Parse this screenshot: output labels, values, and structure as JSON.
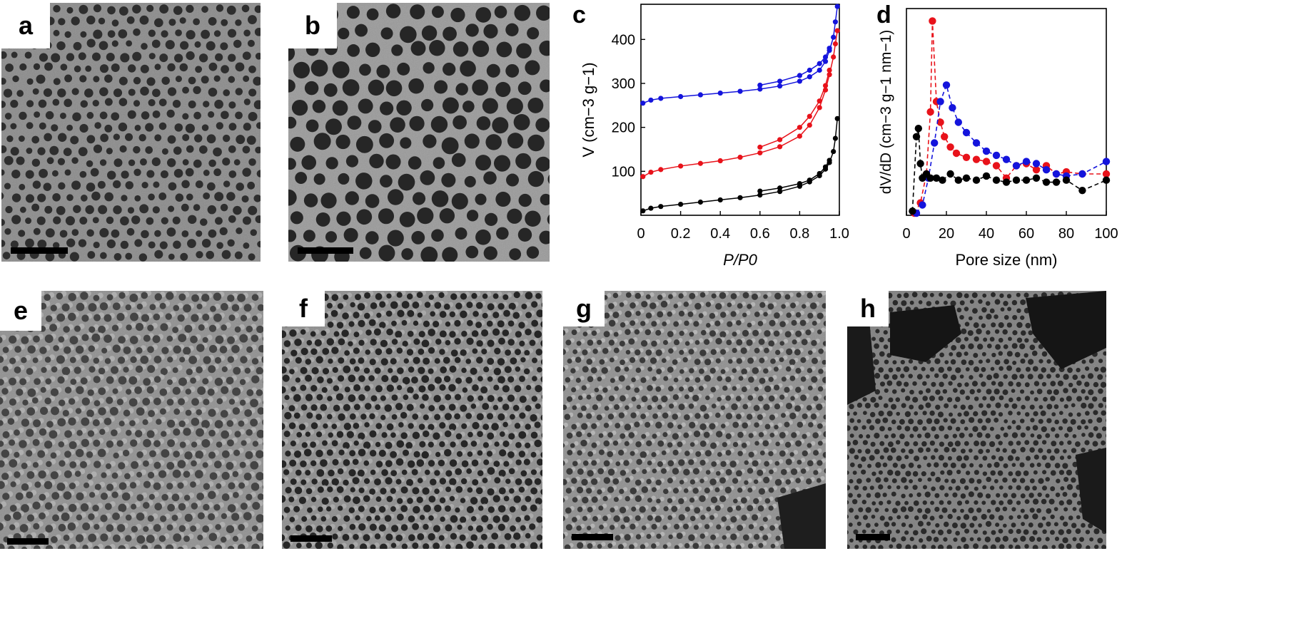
{
  "panels": {
    "a": {
      "label": "a"
    },
    "b": {
      "label": "b"
    },
    "c": {
      "label": "c"
    },
    "d": {
      "label": "d"
    },
    "e": {
      "label": "e"
    },
    "f": {
      "label": "f"
    },
    "g": {
      "label": "g"
    },
    "h": {
      "label": "h"
    }
  },
  "colors": {
    "black": "#000000",
    "red": "#e8121a",
    "blue": "#1414dc"
  },
  "chart_data": [
    {
      "panel": "c",
      "type": "scatter",
      "xlabel": "P/P0",
      "ylabel": "V (cm−3 g−1)",
      "xlim": [
        0,
        1.0
      ],
      "ylim": [
        0,
        480
      ],
      "xticks": [
        "0",
        "0.2",
        "0.4",
        "0.6",
        "0.8",
        "1.0"
      ],
      "yticks": [
        "100",
        "200",
        "300",
        "400"
      ],
      "series": [
        {
          "color": "#1414dc",
          "branch": "adsorption",
          "x": [
            0.01,
            0.05,
            0.1,
            0.2,
            0.3,
            0.4,
            0.5,
            0.6,
            0.7,
            0.8,
            0.85,
            0.9,
            0.93,
            0.95,
            0.97,
            0.98,
            0.99
          ],
          "y": [
            255,
            262,
            266,
            270,
            274,
            278,
            282,
            287,
            294,
            305,
            315,
            330,
            350,
            375,
            405,
            440,
            475
          ]
        },
        {
          "color": "#1414dc",
          "branch": "desorption",
          "x": [
            0.6,
            0.7,
            0.8,
            0.85,
            0.9,
            0.93,
            0.95
          ],
          "y": [
            296,
            305,
            318,
            330,
            345,
            360,
            380
          ]
        },
        {
          "color": "#e8121a",
          "branch": "adsorption",
          "x": [
            0.01,
            0.05,
            0.1,
            0.2,
            0.3,
            0.4,
            0.5,
            0.6,
            0.7,
            0.8,
            0.85,
            0.9,
            0.93,
            0.95,
            0.97,
            0.98,
            0.99
          ],
          "y": [
            88,
            98,
            104,
            112,
            118,
            124,
            132,
            142,
            156,
            180,
            205,
            245,
            285,
            320,
            360,
            390,
            420
          ]
        },
        {
          "color": "#e8121a",
          "branch": "desorption",
          "x": [
            0.6,
            0.7,
            0.8,
            0.85,
            0.9,
            0.93,
            0.95
          ],
          "y": [
            155,
            172,
            200,
            225,
            260,
            295,
            330
          ]
        },
        {
          "color": "#000000",
          "branch": "adsorption",
          "x": [
            0.01,
            0.05,
            0.1,
            0.2,
            0.3,
            0.4,
            0.5,
            0.6,
            0.7,
            0.8,
            0.85,
            0.9,
            0.93,
            0.95,
            0.97,
            0.98,
            0.99
          ],
          "y": [
            10,
            16,
            20,
            25,
            30,
            35,
            40,
            46,
            54,
            66,
            76,
            90,
            105,
            120,
            145,
            175,
            220
          ]
        },
        {
          "color": "#000000",
          "branch": "desorption",
          "x": [
            0.6,
            0.7,
            0.8,
            0.85,
            0.9,
            0.93,
            0.95
          ],
          "y": [
            55,
            62,
            72,
            80,
            95,
            110,
            125
          ]
        }
      ]
    },
    {
      "panel": "d",
      "type": "line",
      "xlabel": "Pore size (nm)",
      "ylabel": "dV/dD (cm−3 g−1 nm−1)",
      "xlim": [
        0,
        100
      ],
      "ylim": [
        0,
        1
      ],
      "xticks": [
        "0",
        "20",
        "40",
        "60",
        "80",
        "100"
      ],
      "series": [
        {
          "color": "#e8121a",
          "dashed": true,
          "x": [
            4,
            7,
            10,
            12,
            13,
            15,
            17,
            19,
            22,
            25,
            30,
            35,
            40,
            45,
            50,
            55,
            60,
            65,
            70,
            75,
            80,
            88,
            100
          ],
          "y": [
            0.01,
            0.06,
            0.2,
            0.5,
            0.94,
            0.55,
            0.45,
            0.38,
            0.33,
            0.3,
            0.28,
            0.27,
            0.26,
            0.24,
            0.18,
            0.24,
            0.25,
            0.22,
            0.24,
            0.2,
            0.21,
            0.2,
            0.2
          ]
        },
        {
          "color": "#1414dc",
          "dashed": true,
          "x": [
            5,
            8,
            11,
            14,
            17,
            20,
            23,
            26,
            30,
            35,
            40,
            45,
            50,
            55,
            60,
            65,
            70,
            75,
            80,
            88,
            100
          ],
          "y": [
            0.01,
            0.05,
            0.18,
            0.35,
            0.55,
            0.63,
            0.52,
            0.45,
            0.4,
            0.35,
            0.31,
            0.29,
            0.27,
            0.24,
            0.26,
            0.25,
            0.22,
            0.2,
            0.19,
            0.2,
            0.26
          ]
        },
        {
          "color": "#000000",
          "dashed": true,
          "x": [
            3,
            5,
            6,
            7,
            8,
            10,
            12,
            15,
            18,
            22,
            26,
            30,
            35,
            40,
            45,
            50,
            55,
            60,
            65,
            70,
            75,
            80,
            88,
            100
          ],
          "y": [
            0.02,
            0.38,
            0.42,
            0.25,
            0.18,
            0.2,
            0.18,
            0.18,
            0.17,
            0.2,
            0.17,
            0.18,
            0.17,
            0.19,
            0.17,
            0.16,
            0.17,
            0.17,
            0.18,
            0.16,
            0.16,
            0.17,
            0.12,
            0.17
          ]
        }
      ]
    }
  ]
}
